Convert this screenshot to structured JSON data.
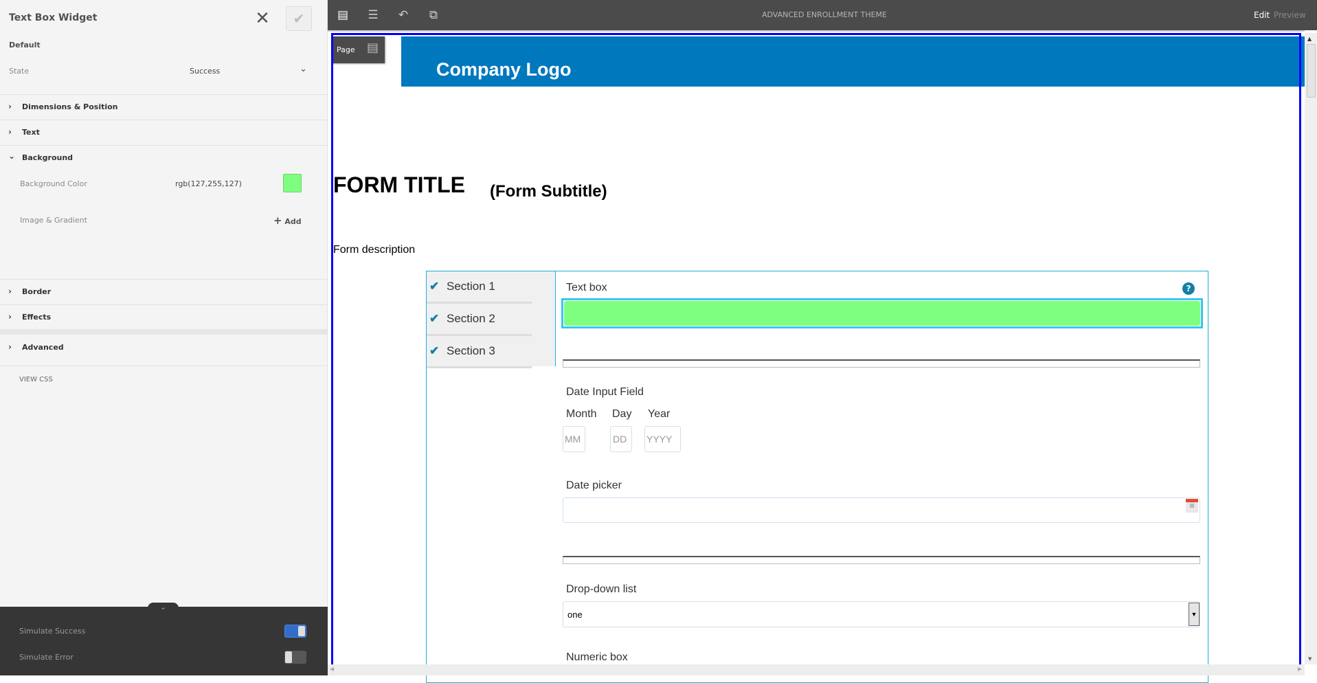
{
  "panel": {
    "title": "Text Box Widget",
    "close_icon": "close-icon",
    "confirm_icon": "check-icon",
    "default_label": "Default",
    "state_label": "State",
    "state_value": "Success",
    "sections": [
      {
        "label": "Dimensions & Position",
        "expanded": false
      },
      {
        "label": "Text",
        "expanded": false
      },
      {
        "label": "Background",
        "expanded": true
      },
      {
        "label": "Border",
        "expanded": false
      },
      {
        "label": "Effects",
        "expanded": false
      },
      {
        "label": "Advanced",
        "expanded": false
      }
    ],
    "background": {
      "color_label": "Background Color",
      "color_value": "rgb(127,255,127)",
      "swatch_color": "#7fff7f",
      "image_label": "Image & Gradient",
      "add_label": "Add"
    },
    "view_css": "VIEW CSS"
  },
  "simulate": {
    "success_label": "Simulate Success",
    "success_on": true,
    "error_label": "Simulate Error",
    "error_on": false
  },
  "toolbar": {
    "icons": [
      "sidebar-toggle-icon",
      "properties-icon",
      "undo-icon",
      "preview-device-icon"
    ],
    "title": "ADVANCED ENROLLMENT THEME",
    "edit": "Edit",
    "preview": "Preview"
  },
  "canvas": {
    "page_label": "Page",
    "logo": "Company Logo",
    "header_color": "#0078be",
    "form_title": "FORM TITLE",
    "form_subtitle": "(Form Subtitle)",
    "form_description": "Form description",
    "nav": [
      "Section 1",
      "Section 2",
      "Section 3"
    ],
    "textbox_label": "Text box",
    "date_input_label": "Date Input Field",
    "month": "Month",
    "day": "Day",
    "year": "Year",
    "mm": "MM",
    "dd": "DD",
    "yyyy": "YYYY",
    "date_picker_label": "Date picker",
    "dropdown_label": "Drop-down list",
    "dropdown_value": "one",
    "numeric_label": "Numeric box"
  }
}
